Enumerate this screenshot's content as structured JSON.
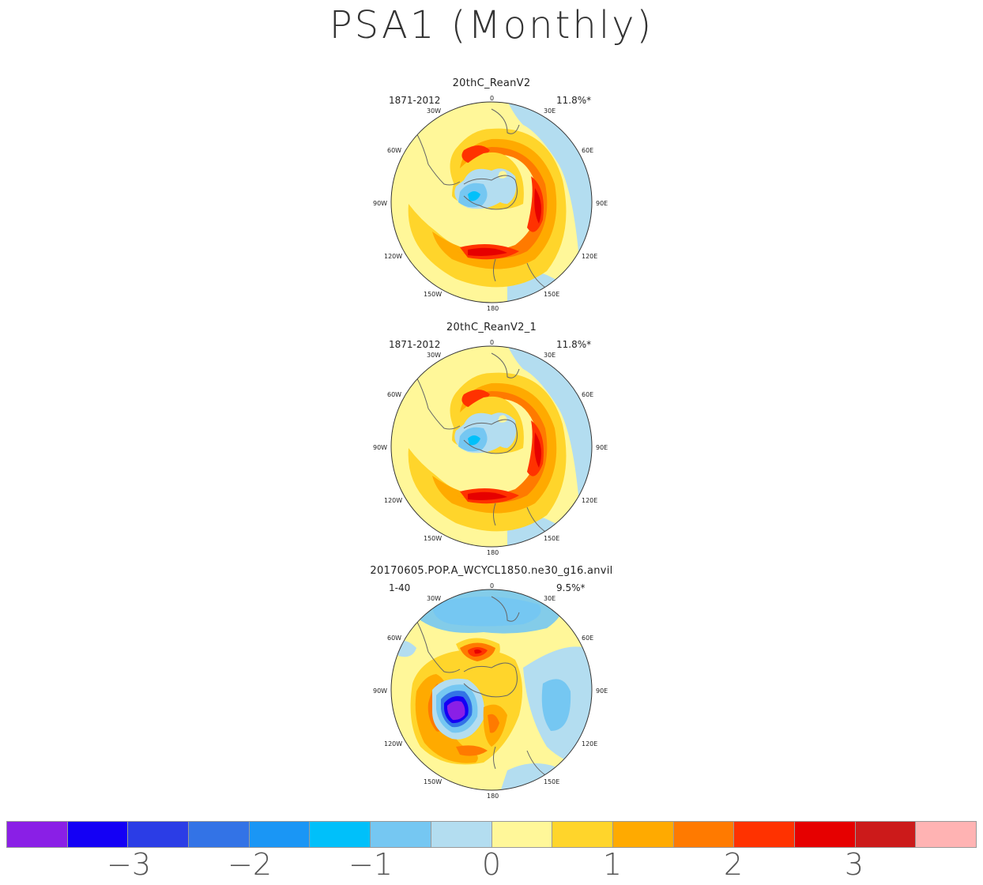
{
  "title": "PSA1 (Monthly)",
  "compass_labels": {
    "n": "0",
    "ne": "30E",
    "e1": "60E",
    "e2": "90E",
    "e3": "120E",
    "e4": "150E",
    "s": "180",
    "w4": "150W",
    "w3": "120W",
    "w2": "90W",
    "w1": "60W",
    "nw": "30W"
  },
  "panels": [
    {
      "title": "20thC_ReanV2",
      "period": "1871-2012",
      "variance": "11.8%*"
    },
    {
      "title": "20thC_ReanV2_1",
      "period": "1871-2012",
      "variance": "11.8%*"
    },
    {
      "title": "20170605.POP.A_WCYCL1850.ne30_g16.anvil",
      "period": "1-40",
      "variance": "9.5%*"
    }
  ],
  "colorbar": {
    "colors": [
      "#8a1fe6",
      "#1400f5",
      "#2b3de6",
      "#3373e6",
      "#1a96f5",
      "#00c0fa",
      "#75c7f2",
      "#b3ddf0",
      "#fff799",
      "#ffd52b",
      "#ffaa00",
      "#ff7a00",
      "#ff3200",
      "#e60000",
      "#cc1a1a",
      "#ffb3b3"
    ],
    "labels": [
      "−3",
      "−2",
      "−1",
      "0",
      "1",
      "2",
      "3"
    ]
  }
}
